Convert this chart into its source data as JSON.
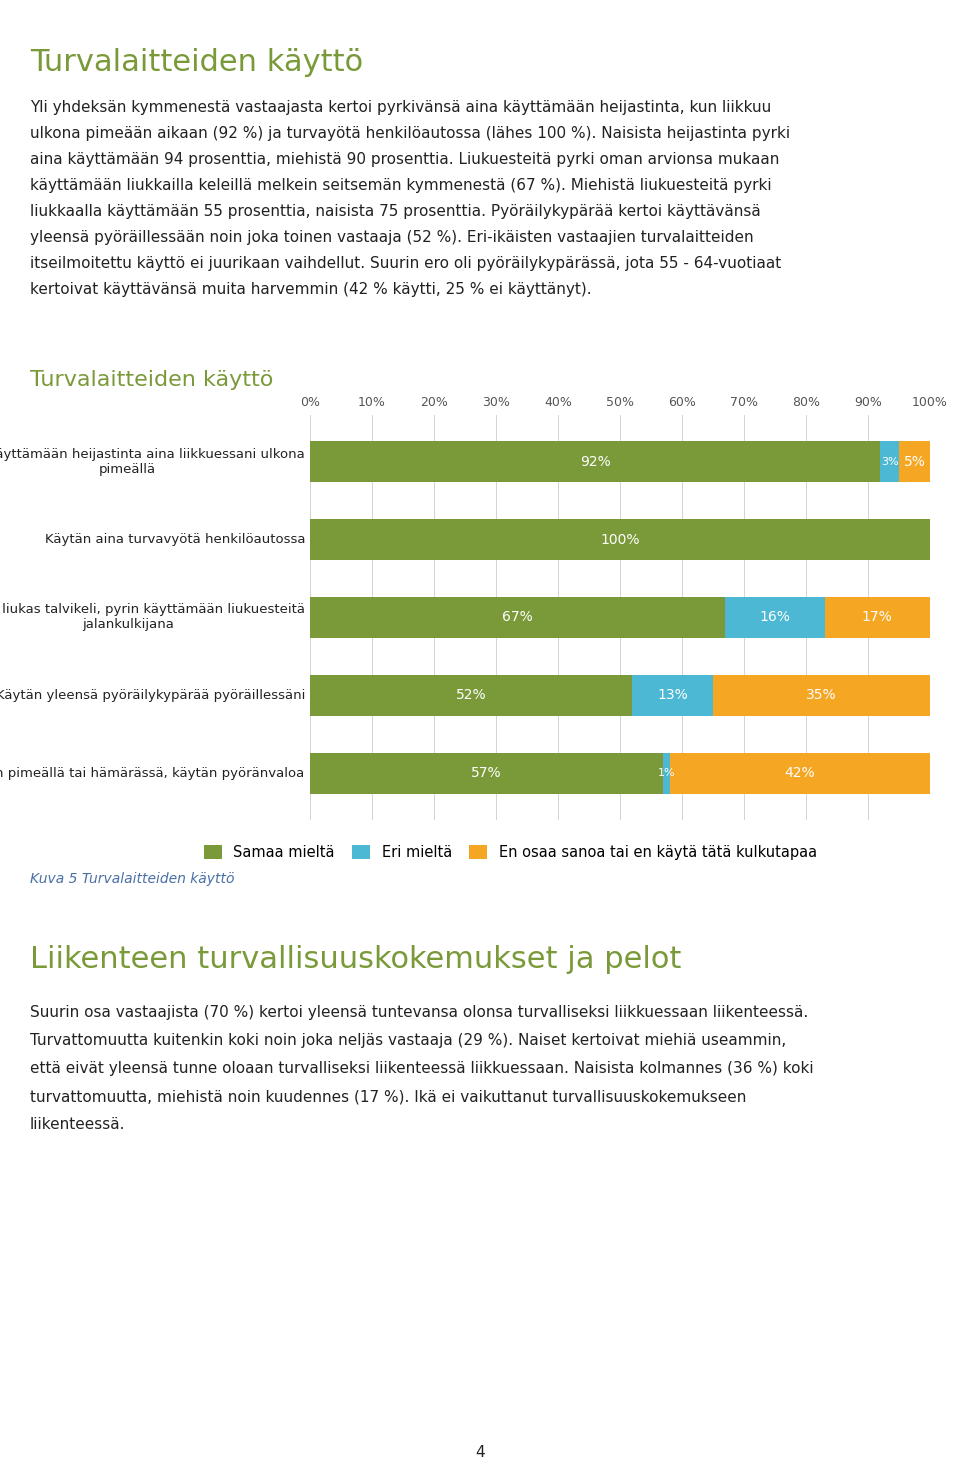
{
  "page_title": "Turvalaitteiden käyttö",
  "page_title_color": "#7a9a3a",
  "intro_lines": [
    "Yli yhdeksän kymmenestä vastaajasta kertoi pyrkivänsä aina käyttämään heijastinta, kun liikkuu",
    "ulkona pimeään aikaan (92 %) ja turvayötä henkilöautossa (lähes 100 %). Naisista heijastinta pyrki",
    "aina käyttämään 94 prosenttia, miehistä 90 prosenttia. Liukuesteitä pyrki oman arvionsa mukaan",
    "käyttämään liukkailla keleillä melkein seitsemän kymmenestä (67 %). Miehistä liukuesteitä pyrki",
    "liukkaalla käyttämään 55 prosenttia, naisista 75 prosenttia. Pyöräilykypärää kertoi käyttävänsä",
    "yleensä pyöräillessään noin joka toinen vastaaja (52 %). Eri-ikäisten vastaajien turvalaitteiden",
    "itseilmoitettu käyttö ei juurikaan vaihdellut. Suurin ero oli pyöräilykypärässä, jota 55 - 64-vuotiaat",
    "kertoivat käyttävänsä muita harvemmin (42 % käytti, 25 % ei käyttänyt)."
  ],
  "chart_title": "Turvalaitteiden käyttö",
  "chart_title_color": "#7a9a3a",
  "categories": [
    "Pyrin käyttämään heijastinta aina liikkuessani ulkona\npimeällä",
    "Käytän aina turvavyötä henkilöautossa",
    "Kun on liukas talvikeli, pyrin käyttämään liukuesteitä\njalankulkijana",
    "Käytän yleensä pyöräilykypärää pyöräillessäni",
    "Jos pyöräilen pimeällä tai hämärässä, käytän pyöränvaloa"
  ],
  "samaa_values": [
    92,
    100,
    67,
    52,
    57
  ],
  "eri_values": [
    3,
    0,
    16,
    13,
    1
  ],
  "en_values": [
    5,
    0,
    17,
    35,
    42
  ],
  "color_samaa": "#7a9a3a",
  "color_eri": "#4db8d4",
  "color_en": "#f5a623",
  "legend_samaa": "Samaa mieltä",
  "legend_eri": "Eri mieltä",
  "legend_en": "En osaa sanoa tai en käytä tätä kulkutapaa",
  "caption": "Kuva 5 Turvalaitteiden käyttö",
  "caption_color": "#4a6fa5",
  "section2_title": "Liikenteen turvallisuuskokemukset ja pelot",
  "section2_title_color": "#7a9a3a",
  "section2_lines": [
    "Suurin osa vastaajista (70 %) kertoi yleensä tuntevansa olonsa turvalliseksi liikkuessaan liikenteessä.",
    "Turvattomuutta kuitenkin koki noin joka neljäs vastaaja (29 %). Naiset kertoivat miehiä useammin,",
    "että eivät yleensä tunne oloaan turvalliseksi liikenteessä liikkuessaan. Naisista kolmannes (36 %) koki",
    "turvattomuutta, miehistä noin kuudennes (17 %). Ikä ei vaikuttanut turvallisuuskokemukseen",
    "liikenteessä."
  ],
  "page_number": "4",
  "background_color": "#ffffff",
  "text_color": "#222222"
}
